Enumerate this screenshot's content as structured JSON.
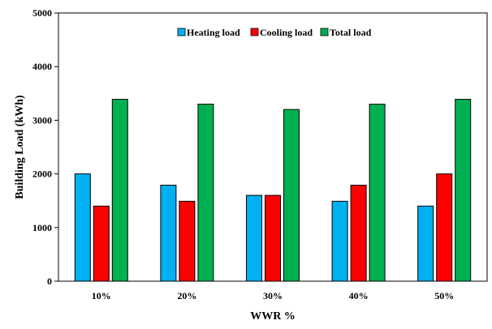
{
  "chart_data": {
    "type": "bar",
    "title": "",
    "xlabel": "WWR %",
    "ylabel": "Building Load  (kWh)",
    "categories": [
      "10%",
      "20%",
      "30%",
      "40%",
      "50%"
    ],
    "ylim": [
      0,
      5000
    ],
    "yticks": [
      0,
      1000,
      2000,
      3000,
      4000,
      5000
    ],
    "grid": false,
    "legend_position": "top-center",
    "series": [
      {
        "name": "Heating load",
        "color": "#00b0f0",
        "values": [
          2000,
          1790,
          1600,
          1490,
          1400
        ]
      },
      {
        "name": "Cooling load",
        "color": "#ff0000",
        "values": [
          1400,
          1490,
          1600,
          1790,
          2000
        ]
      },
      {
        "name": "Total load",
        "color": "#00b050",
        "values": [
          3390,
          3300,
          3200,
          3300,
          3390
        ]
      }
    ]
  }
}
